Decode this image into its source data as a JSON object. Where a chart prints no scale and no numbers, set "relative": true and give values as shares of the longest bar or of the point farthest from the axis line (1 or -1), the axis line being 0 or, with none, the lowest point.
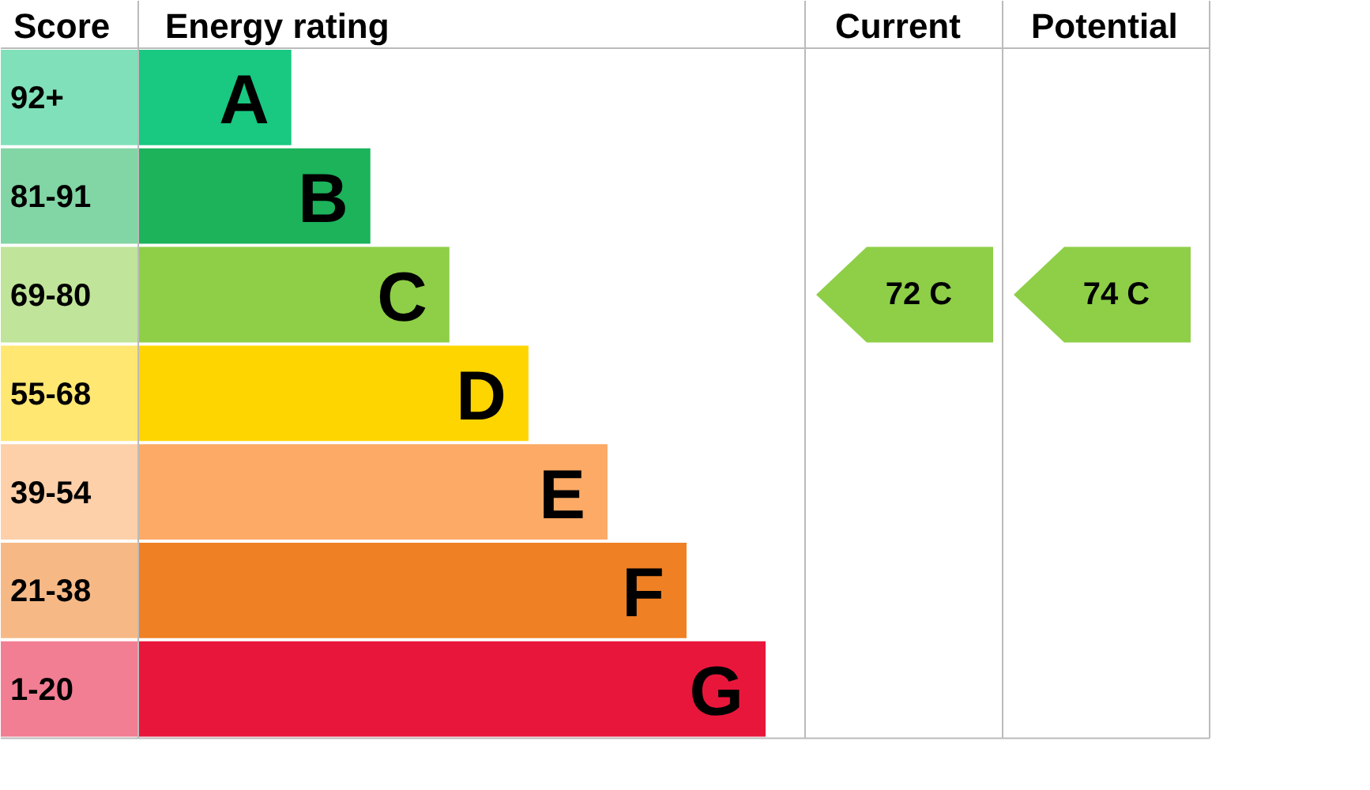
{
  "chart_data": {
    "type": "bar",
    "orientation": "horizontal",
    "relative": true,
    "categories": [
      "A",
      "B",
      "C",
      "D",
      "E",
      "F",
      "G"
    ],
    "values": [
      0.244,
      0.37,
      0.496,
      0.622,
      0.748,
      0.874,
      1
    ],
    "colors": [
      "#19c881",
      "#1cb35b",
      "#8ecf47",
      "#ffd500",
      "#fcaa66",
      "#ef8024",
      "#e9163b"
    ],
    "annotations": [
      "Score",
      "Energy rating",
      "Current",
      "Potential",
      "92+",
      "81-91",
      "69-80",
      "55-68",
      "39-54",
      "21-38",
      "1-20",
      "72 C",
      "74 C"
    ]
  }
}
